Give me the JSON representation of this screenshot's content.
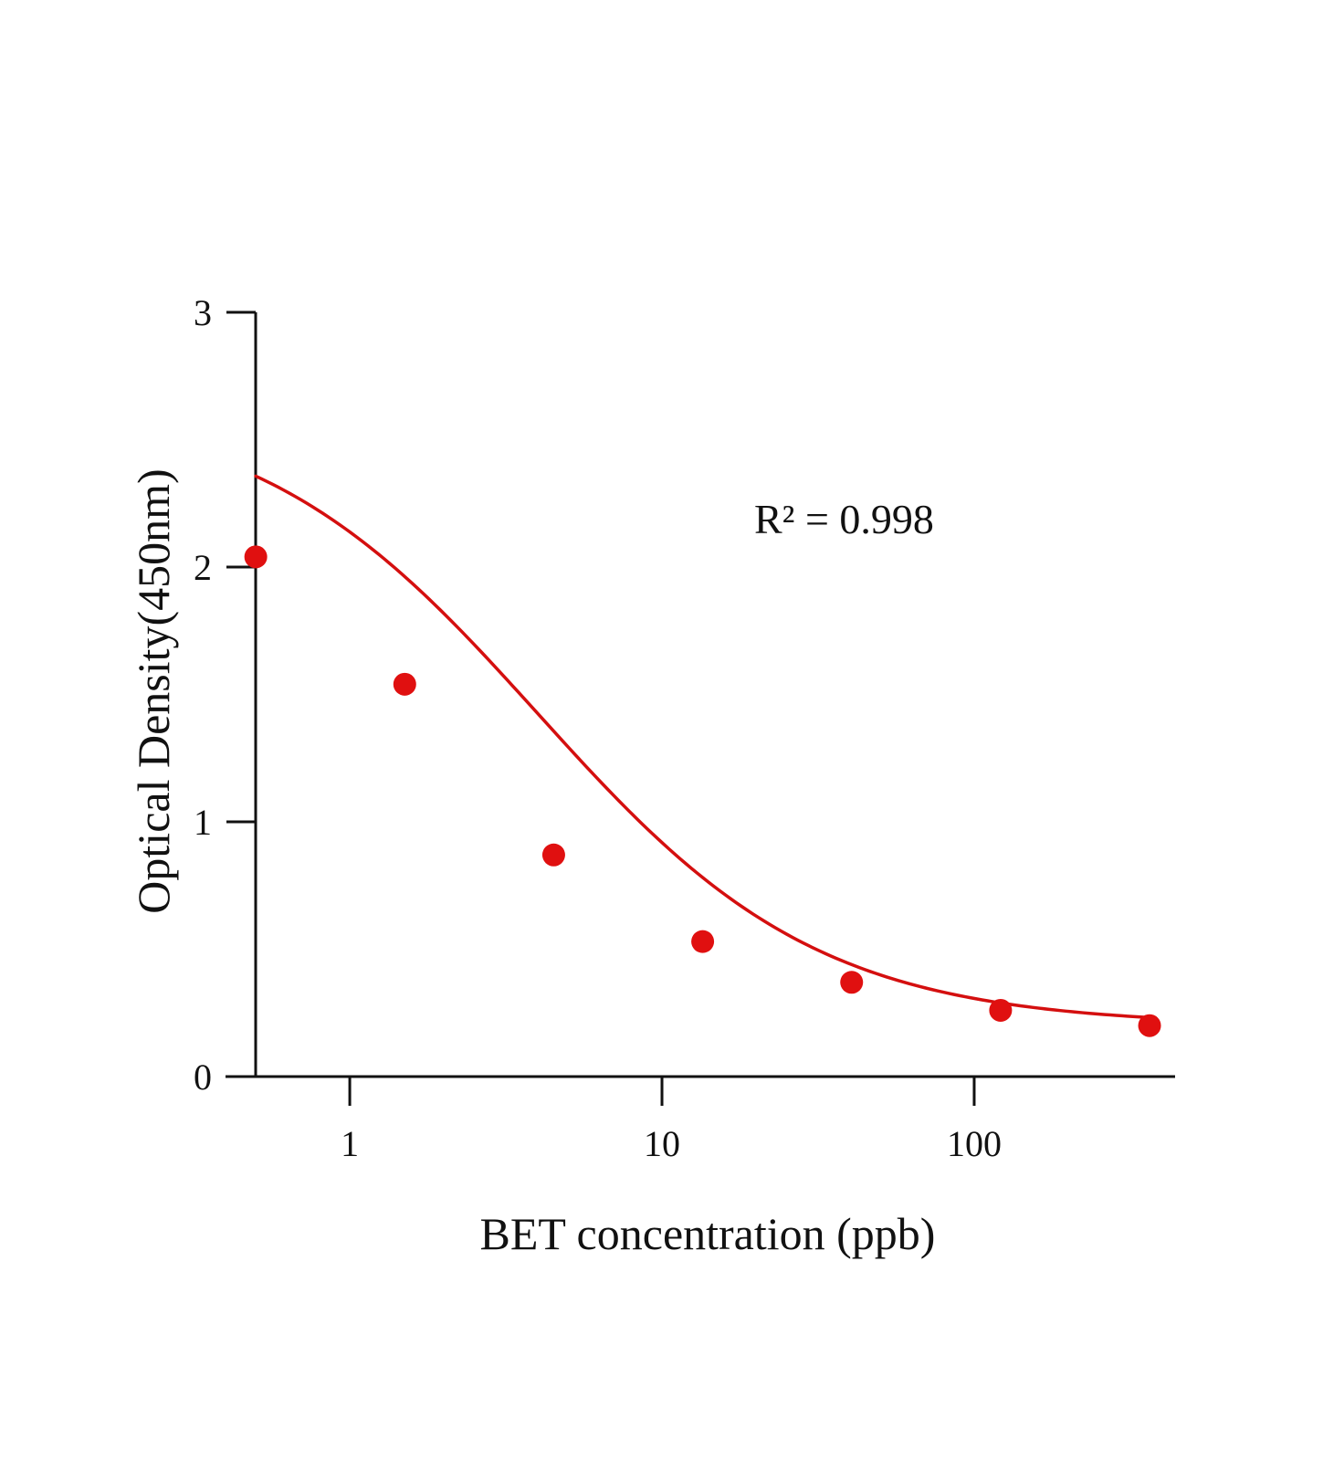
{
  "chart_data": {
    "type": "scatter",
    "title": "",
    "xlabel": "BET concentration (ppb)",
    "ylabel": "Optical Density(450nm)",
    "x_scale": "log",
    "xlim": [
      0.4,
      440
    ],
    "ylim": [
      0,
      3
    ],
    "x_ticks": [
      1,
      10,
      100
    ],
    "x_tick_labels": [
      "1",
      "10",
      "100"
    ],
    "y_ticks": [
      0,
      1,
      2,
      3
    ],
    "y_tick_labels": [
      "0",
      "1",
      "2",
      "3"
    ],
    "grid": false,
    "legend": "none",
    "annotation": "R² = 0.998",
    "colors": {
      "series": "#e01010",
      "curve": "#d40f0f",
      "axis": "#111111"
    },
    "series": [
      {
        "x": [
          0.5,
          1.5,
          4.5,
          13.5,
          40.5,
          121.5,
          364.5
        ],
        "y": [
          2.04,
          1.54,
          0.87,
          0.53,
          0.37,
          0.26,
          0.2
        ]
      }
    ],
    "fit_curve": {
      "model": "4PL",
      "top": 2.65,
      "bottom": 0.2,
      "ec50": 4.0,
      "slope": 0.96,
      "x_range": [
        0.5,
        364.5
      ]
    }
  }
}
